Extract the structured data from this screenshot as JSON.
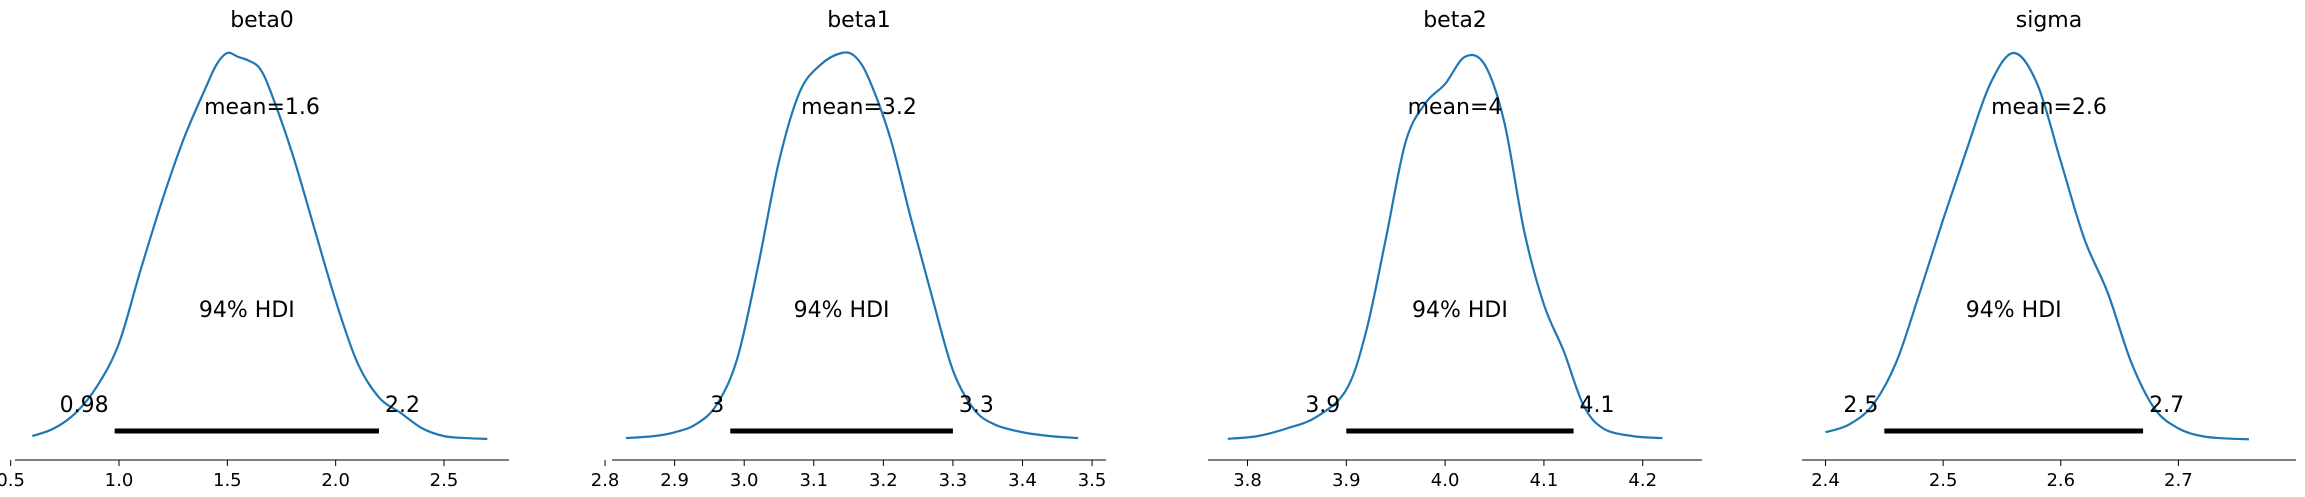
{
  "chart_data": [
    {
      "type": "line",
      "title": "beta0",
      "xlim": [
        0.52,
        2.8
      ],
      "ticks": [
        0.5,
        1.0,
        1.5,
        2.0,
        2.5
      ],
      "tick_labels": [
        "0.5",
        "1.0",
        "1.5",
        "2.0",
        "2.5"
      ],
      "mean_label": "mean=1.6",
      "hdi_label": "94% HDI",
      "hdi": [
        0.98,
        2.2
      ],
      "hdi_low_label": "0.98",
      "hdi_high_label": "2.2",
      "x": [
        0.6,
        0.7,
        0.8,
        0.9,
        1.0,
        1.1,
        1.2,
        1.3,
        1.4,
        1.45,
        1.5,
        1.55,
        1.6,
        1.65,
        1.7,
        1.8,
        1.9,
        2.0,
        2.1,
        2.2,
        2.3,
        2.4,
        2.5,
        2.6,
        2.7
      ],
      "y": [
        0.01,
        0.03,
        0.07,
        0.14,
        0.25,
        0.44,
        0.62,
        0.78,
        0.91,
        0.97,
        1.0,
        0.99,
        0.98,
        0.96,
        0.9,
        0.74,
        0.55,
        0.36,
        0.2,
        0.11,
        0.07,
        0.03,
        0.01,
        0.005,
        0.003
      ]
    },
    {
      "type": "line",
      "title": "beta1",
      "xlim": [
        2.81,
        3.52
      ],
      "ticks": [
        2.8,
        2.9,
        3.0,
        3.1,
        3.2,
        3.3,
        3.4,
        3.5
      ],
      "tick_labels": [
        "2.8",
        "2.9",
        "3.0",
        "3.1",
        "3.2",
        "3.3",
        "3.4",
        "3.5"
      ],
      "mean_label": "mean=3.2",
      "hdi_label": "94% HDI",
      "hdi": [
        2.98,
        3.3
      ],
      "hdi_low_label": "3",
      "hdi_high_label": "3.3",
      "x": [
        2.83,
        2.87,
        2.9,
        2.93,
        2.96,
        2.99,
        3.02,
        3.05,
        3.08,
        3.11,
        3.14,
        3.16,
        3.18,
        3.21,
        3.24,
        3.27,
        3.3,
        3.33,
        3.36,
        3.4,
        3.44,
        3.48
      ],
      "y": [
        0.005,
        0.01,
        0.02,
        0.04,
        0.09,
        0.21,
        0.45,
        0.72,
        0.9,
        0.97,
        1.0,
        0.99,
        0.93,
        0.78,
        0.57,
        0.37,
        0.18,
        0.08,
        0.04,
        0.02,
        0.01,
        0.005
      ]
    },
    {
      "type": "line",
      "title": "beta2",
      "xlim": [
        3.76,
        4.26
      ],
      "ticks": [
        3.8,
        3.9,
        4.0,
        4.1,
        4.2
      ],
      "tick_labels": [
        "3.8",
        "3.9",
        "4.0",
        "4.1",
        "4.2"
      ],
      "mean_label": "mean=4",
      "hdi_label": "94% HDI",
      "hdi": [
        3.9,
        4.13
      ],
      "hdi_low_label": "3.9",
      "hdi_high_label": "4.1",
      "x": [
        3.78,
        3.81,
        3.84,
        3.87,
        3.9,
        3.92,
        3.94,
        3.96,
        3.98,
        4.0,
        4.02,
        4.04,
        4.06,
        4.08,
        4.1,
        4.12,
        4.14,
        4.16,
        4.19,
        4.22
      ],
      "y": [
        0.003,
        0.01,
        0.03,
        0.06,
        0.13,
        0.28,
        0.52,
        0.77,
        0.87,
        0.92,
        0.99,
        0.97,
        0.82,
        0.54,
        0.35,
        0.23,
        0.09,
        0.03,
        0.01,
        0.005
      ]
    },
    {
      "type": "line",
      "title": "sigma",
      "xlim": [
        2.38,
        2.8
      ],
      "ticks": [
        2.4,
        2.5,
        2.6,
        2.7
      ],
      "tick_labels": [
        "2.4",
        "2.5",
        "2.6",
        "2.7"
      ],
      "mean_label": "mean=2.6",
      "hdi_label": "94% HDI",
      "hdi": [
        2.45,
        2.67
      ],
      "hdi_low_label": "2.5",
      "hdi_high_label": "2.7",
      "x": [
        2.4,
        2.42,
        2.44,
        2.46,
        2.48,
        2.5,
        2.52,
        2.54,
        2.56,
        2.58,
        2.6,
        2.62,
        2.64,
        2.66,
        2.68,
        2.7,
        2.72,
        2.74,
        2.76
      ],
      "y": [
        0.02,
        0.04,
        0.09,
        0.2,
        0.38,
        0.57,
        0.75,
        0.92,
        1.0,
        0.92,
        0.72,
        0.52,
        0.38,
        0.2,
        0.08,
        0.03,
        0.01,
        0.004,
        0.002
      ]
    }
  ]
}
